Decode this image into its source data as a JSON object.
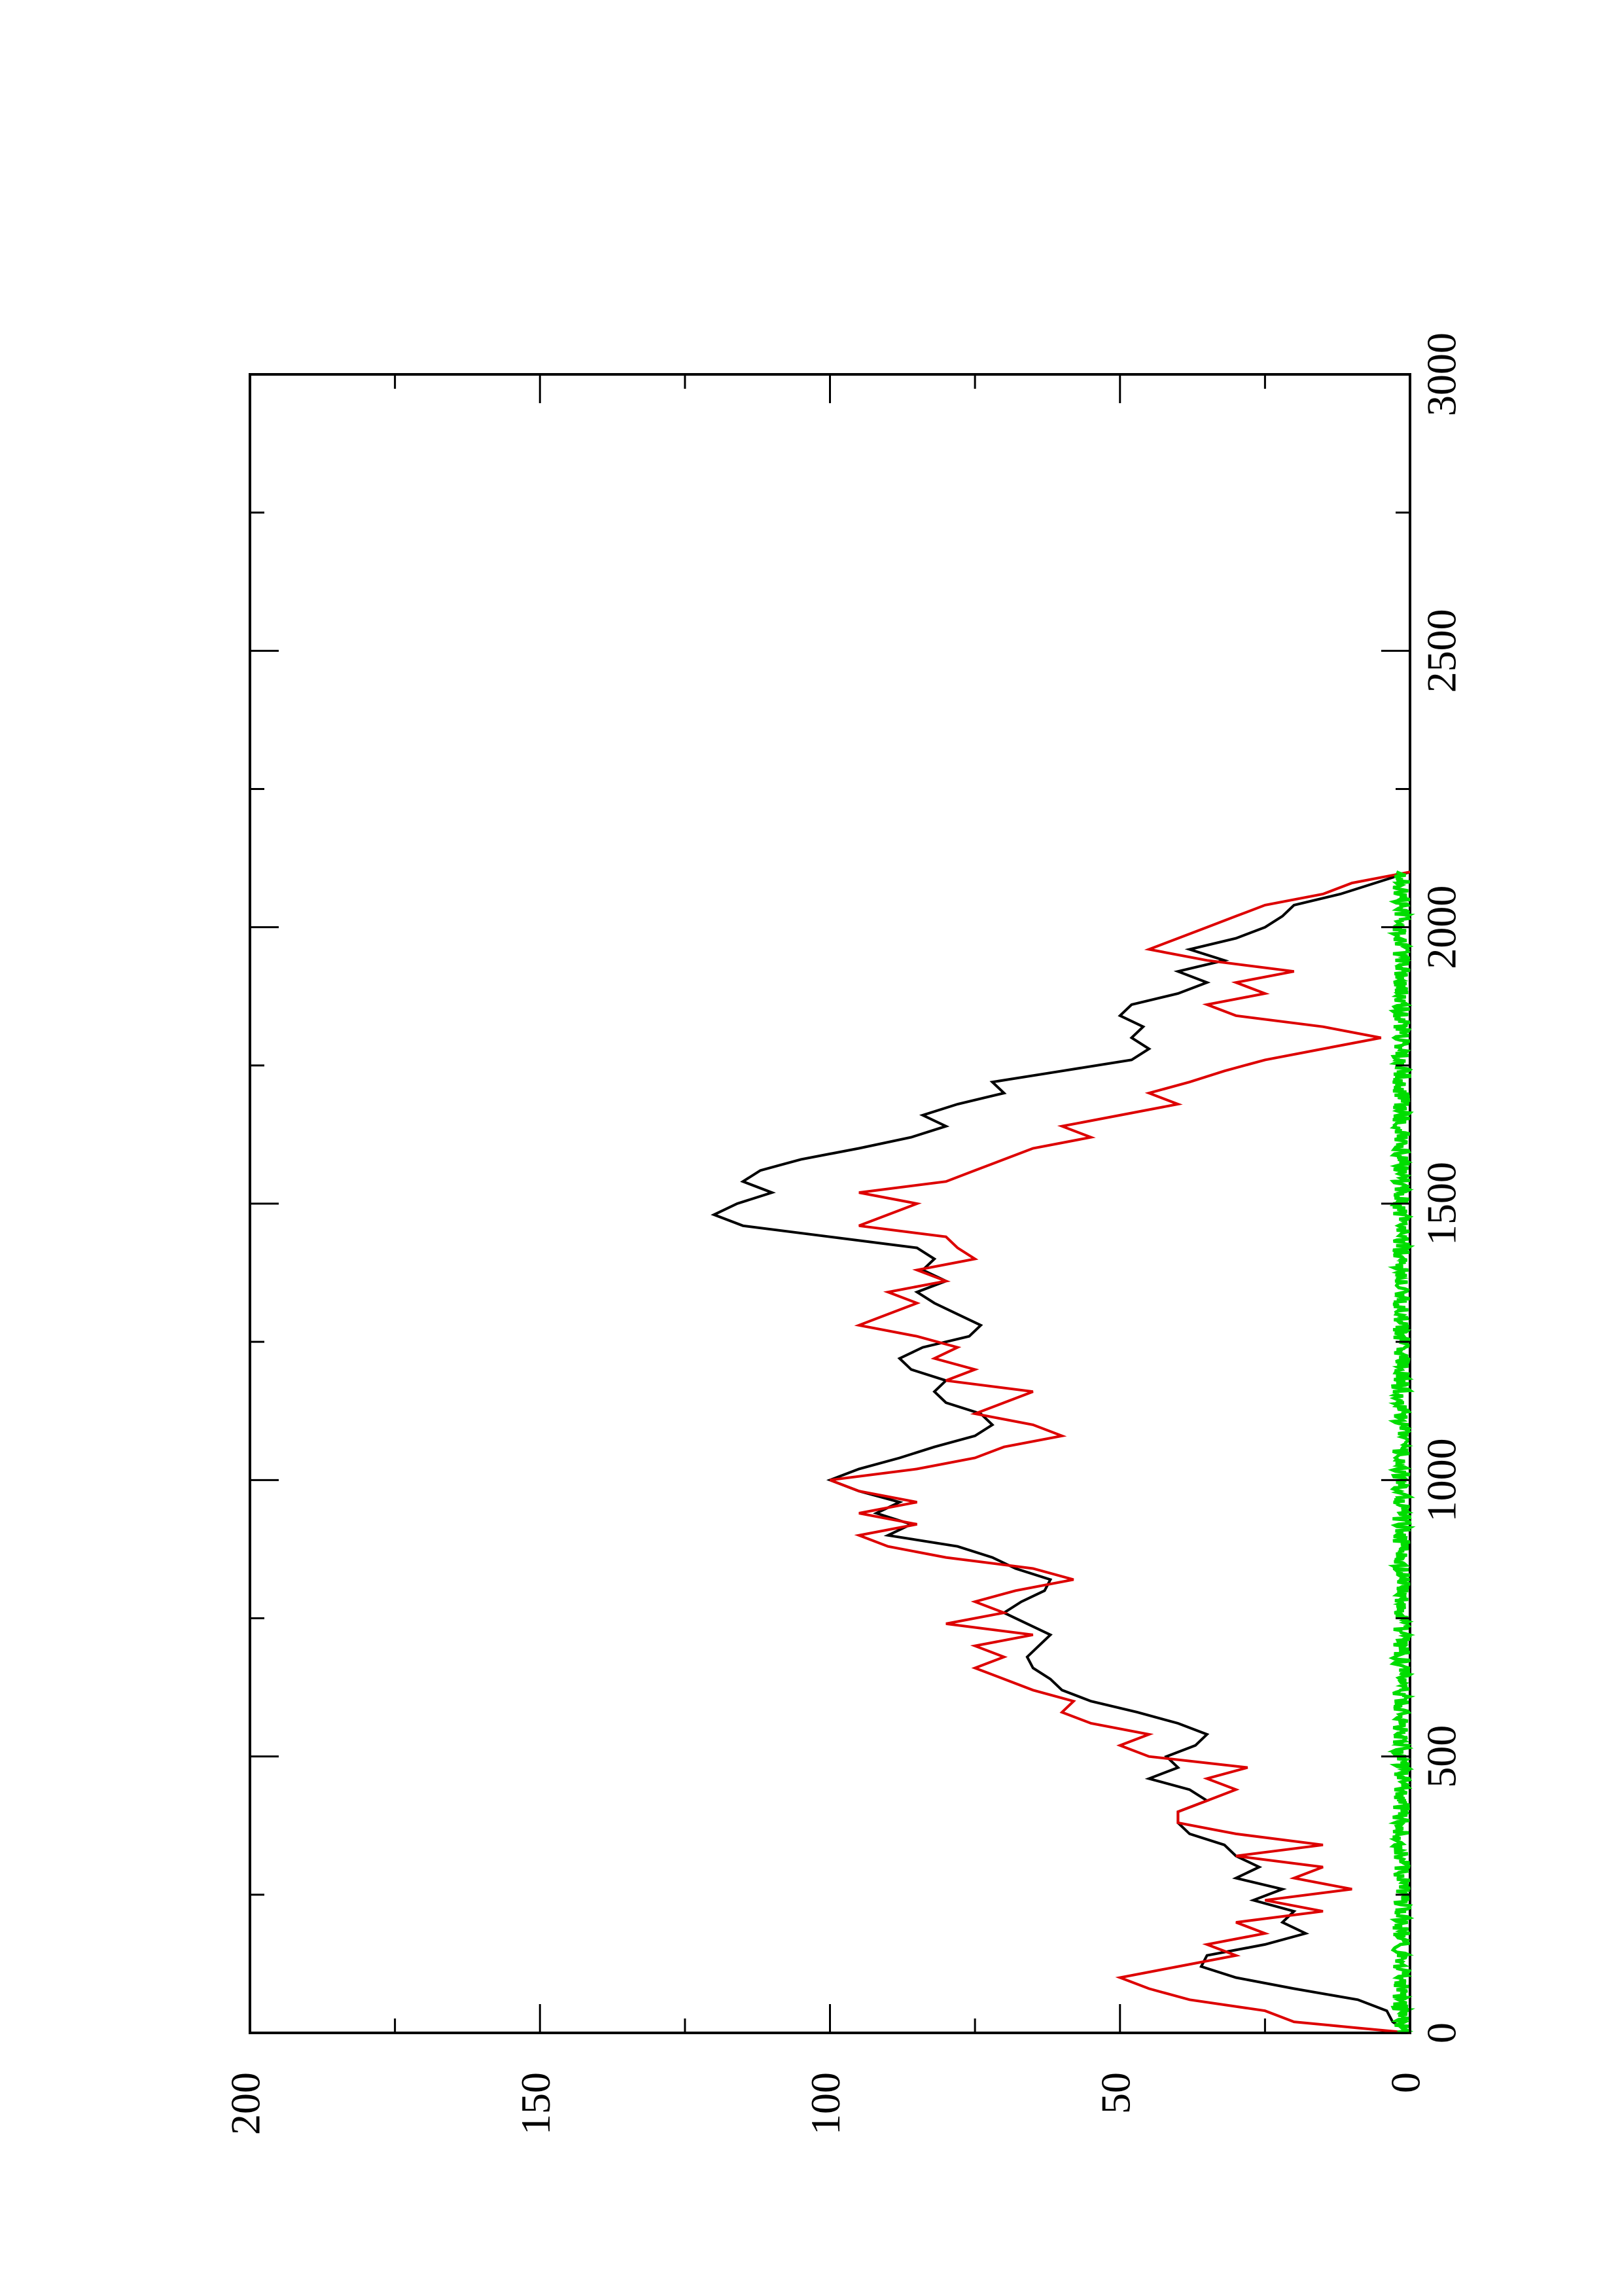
{
  "chart_data": {
    "type": "line",
    "orientation": "rotated-90-counterclockwise",
    "title": "",
    "xlabel": "",
    "ylabel": "",
    "xlim": [
      0,
      3000
    ],
    "ylim": [
      0,
      200
    ],
    "x_ticks": [
      0,
      500,
      1000,
      1500,
      2000,
      2500,
      3000
    ],
    "y_ticks": [
      0,
      50,
      100,
      150,
      200
    ],
    "grid": false,
    "legend": "none",
    "series": [
      {
        "color": "#000000",
        "points": [
          [
            0,
            0
          ],
          [
            20,
            3
          ],
          [
            40,
            4
          ],
          [
            60,
            9
          ],
          [
            80,
            20
          ],
          [
            100,
            30
          ],
          [
            120,
            36
          ],
          [
            140,
            35
          ],
          [
            160,
            25
          ],
          [
            180,
            18
          ],
          [
            200,
            22
          ],
          [
            220,
            20
          ],
          [
            240,
            27
          ],
          [
            260,
            22
          ],
          [
            280,
            30
          ],
          [
            300,
            26
          ],
          [
            320,
            30
          ],
          [
            340,
            32
          ],
          [
            360,
            38
          ],
          [
            380,
            40
          ],
          [
            400,
            40
          ],
          [
            420,
            35
          ],
          [
            440,
            38
          ],
          [
            460,
            45
          ],
          [
            480,
            40
          ],
          [
            500,
            42
          ],
          [
            520,
            37
          ],
          [
            540,
            35
          ],
          [
            560,
            40
          ],
          [
            580,
            47
          ],
          [
            600,
            55
          ],
          [
            620,
            60
          ],
          [
            640,
            62
          ],
          [
            660,
            65
          ],
          [
            680,
            66
          ],
          [
            700,
            64
          ],
          [
            720,
            62
          ],
          [
            740,
            66
          ],
          [
            760,
            70
          ],
          [
            780,
            67
          ],
          [
            800,
            63
          ],
          [
            820,
            62
          ],
          [
            840,
            68
          ],
          [
            860,
            72
          ],
          [
            880,
            78
          ],
          [
            900,
            90
          ],
          [
            920,
            86
          ],
          [
            940,
            92
          ],
          [
            960,
            88
          ],
          [
            980,
            95
          ],
          [
            1000,
            100
          ],
          [
            1020,
            95
          ],
          [
            1040,
            88
          ],
          [
            1060,
            82
          ],
          [
            1080,
            75
          ],
          [
            1100,
            72
          ],
          [
            1120,
            74
          ],
          [
            1140,
            80
          ],
          [
            1160,
            82
          ],
          [
            1180,
            80
          ],
          [
            1200,
            86
          ],
          [
            1220,
            88
          ],
          [
            1240,
            84
          ],
          [
            1260,
            76
          ],
          [
            1280,
            74
          ],
          [
            1300,
            78
          ],
          [
            1320,
            82
          ],
          [
            1340,
            85
          ],
          [
            1360,
            80
          ],
          [
            1380,
            84
          ],
          [
            1400,
            82
          ],
          [
            1420,
            85
          ],
          [
            1440,
            100
          ],
          [
            1460,
            115
          ],
          [
            1480,
            120
          ],
          [
            1500,
            116
          ],
          [
            1520,
            110
          ],
          [
            1540,
            115
          ],
          [
            1560,
            112
          ],
          [
            1580,
            105
          ],
          [
            1600,
            95
          ],
          [
            1620,
            86
          ],
          [
            1640,
            80
          ],
          [
            1660,
            84
          ],
          [
            1680,
            78
          ],
          [
            1700,
            70
          ],
          [
            1720,
            72
          ],
          [
            1740,
            60
          ],
          [
            1760,
            48
          ],
          [
            1780,
            45
          ],
          [
            1800,
            48
          ],
          [
            1820,
            46
          ],
          [
            1840,
            50
          ],
          [
            1860,
            48
          ],
          [
            1880,
            40
          ],
          [
            1900,
            35
          ],
          [
            1920,
            40
          ],
          [
            1940,
            32
          ],
          [
            1960,
            38
          ],
          [
            1980,
            30
          ],
          [
            2000,
            25
          ],
          [
            2020,
            22
          ],
          [
            2040,
            20
          ],
          [
            2060,
            12
          ],
          [
            2080,
            6
          ],
          [
            2100,
            0
          ]
        ]
      },
      {
        "color": "#dd0000",
        "points": [
          [
            0,
            0
          ],
          [
            10,
            10
          ],
          [
            20,
            20
          ],
          [
            40,
            25
          ],
          [
            60,
            38
          ],
          [
            80,
            45
          ],
          [
            100,
            50
          ],
          [
            120,
            40
          ],
          [
            140,
            30
          ],
          [
            160,
            35
          ],
          [
            180,
            25
          ],
          [
            200,
            30
          ],
          [
            220,
            15
          ],
          [
            240,
            25
          ],
          [
            260,
            10
          ],
          [
            280,
            20
          ],
          [
            300,
            15
          ],
          [
            320,
            30
          ],
          [
            340,
            15
          ],
          [
            360,
            30
          ],
          [
            380,
            40
          ],
          [
            400,
            40
          ],
          [
            420,
            35
          ],
          [
            440,
            30
          ],
          [
            460,
            35
          ],
          [
            480,
            28
          ],
          [
            500,
            45
          ],
          [
            520,
            50
          ],
          [
            540,
            45
          ],
          [
            560,
            55
          ],
          [
            580,
            60
          ],
          [
            600,
            58
          ],
          [
            620,
            65
          ],
          [
            640,
            70
          ],
          [
            660,
            75
          ],
          [
            680,
            70
          ],
          [
            700,
            75
          ],
          [
            720,
            65
          ],
          [
            740,
            80
          ],
          [
            760,
            70
          ],
          [
            780,
            75
          ],
          [
            800,
            68
          ],
          [
            820,
            58
          ],
          [
            840,
            65
          ],
          [
            860,
            80
          ],
          [
            880,
            90
          ],
          [
            900,
            95
          ],
          [
            920,
            85
          ],
          [
            940,
            95
          ],
          [
            960,
            85
          ],
          [
            980,
            95
          ],
          [
            1000,
            100
          ],
          [
            1020,
            85
          ],
          [
            1040,
            75
          ],
          [
            1060,
            70
          ],
          [
            1080,
            60
          ],
          [
            1100,
            65
          ],
          [
            1120,
            75
          ],
          [
            1140,
            70
          ],
          [
            1160,
            65
          ],
          [
            1180,
            80
          ],
          [
            1200,
            75
          ],
          [
            1220,
            82
          ],
          [
            1240,
            78
          ],
          [
            1260,
            85
          ],
          [
            1280,
            95
          ],
          [
            1300,
            90
          ],
          [
            1320,
            85
          ],
          [
            1340,
            90
          ],
          [
            1360,
            80
          ],
          [
            1380,
            85
          ],
          [
            1400,
            75
          ],
          [
            1420,
            78
          ],
          [
            1440,
            80
          ],
          [
            1460,
            95
          ],
          [
            1480,
            90
          ],
          [
            1500,
            85
          ],
          [
            1520,
            95
          ],
          [
            1540,
            80
          ],
          [
            1560,
            75
          ],
          [
            1580,
            70
          ],
          [
            1600,
            65
          ],
          [
            1620,
            55
          ],
          [
            1640,
            60
          ],
          [
            1660,
            50
          ],
          [
            1680,
            40
          ],
          [
            1700,
            45
          ],
          [
            1720,
            38
          ],
          [
            1740,
            32
          ],
          [
            1760,
            25
          ],
          [
            1780,
            15
          ],
          [
            1800,
            5
          ],
          [
            1820,
            15
          ],
          [
            1840,
            30
          ],
          [
            1860,
            35
          ],
          [
            1880,
            25
          ],
          [
            1900,
            30
          ],
          [
            1920,
            20
          ],
          [
            1940,
            35
          ],
          [
            1960,
            45
          ],
          [
            1980,
            40
          ],
          [
            2000,
            35
          ],
          [
            2020,
            30
          ],
          [
            2040,
            25
          ],
          [
            2060,
            15
          ],
          [
            2080,
            10
          ],
          [
            2100,
            0
          ]
        ]
      },
      {
        "color": "#00dd00",
        "noise_band": true,
        "x_range": [
          0,
          2100
        ],
        "amplitude": 1.5
      }
    ]
  }
}
